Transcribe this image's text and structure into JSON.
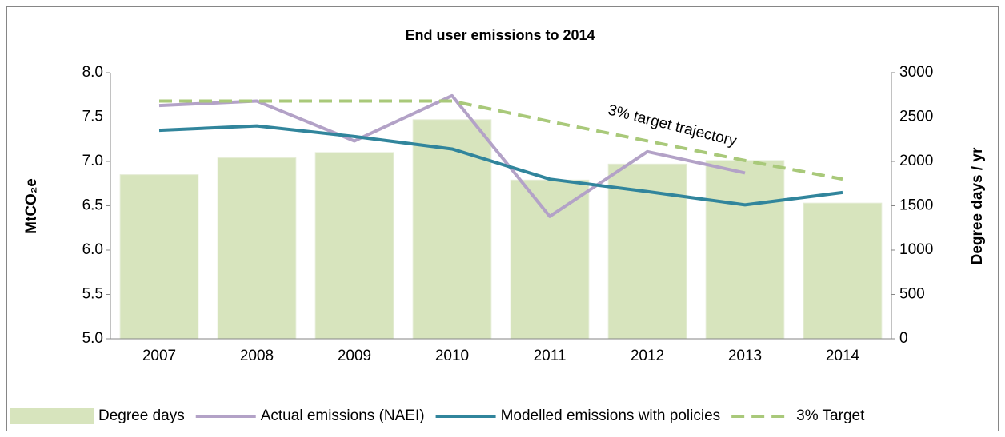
{
  "chart_data": {
    "type": "combo",
    "title": "End user emissions to 2014",
    "ylabel": "MtCO₂e",
    "y2label": "Degree days / yr",
    "annotation": "3% target trajectory",
    "categories": [
      "2007",
      "2008",
      "2009",
      "2010",
      "2011",
      "2012",
      "2013",
      "2014"
    ],
    "series": [
      {
        "name": "Degree days",
        "type": "bar",
        "axis": "y2",
        "color": "#d7e4bd",
        "values": [
          1850,
          2040,
          2100,
          2470,
          1790,
          1970,
          2010,
          1530
        ]
      },
      {
        "name": "Actual emissions (NAEI)",
        "type": "line",
        "color": "#b3a2c7",
        "values": [
          7.63,
          7.68,
          7.23,
          7.74,
          6.38,
          7.11,
          6.87,
          null
        ]
      },
      {
        "name": "Modelled emissions with policies",
        "type": "line",
        "color": "#31859c",
        "values": [
          7.35,
          7.4,
          7.28,
          7.14,
          6.8,
          6.66,
          6.51,
          6.65
        ]
      },
      {
        "name": "3% Target",
        "type": "line",
        "dashed": true,
        "color": "#a9c97a",
        "values": [
          7.68,
          7.68,
          7.68,
          7.68,
          7.45,
          7.23,
          7.01,
          6.8
        ]
      }
    ],
    "ylim": [
      5.0,
      8.0
    ],
    "yticks": [
      {
        "value": 5,
        "label": "5.0"
      },
      {
        "value": 5.5,
        "label": "5.5"
      },
      {
        "value": 6,
        "label": "6.0"
      },
      {
        "value": 6.5,
        "label": "6.5"
      },
      {
        "value": 7,
        "label": "7.0"
      },
      {
        "value": 7.5,
        "label": "7.5"
      },
      {
        "value": 8,
        "label": "8.0"
      }
    ],
    "y2lim": [
      0,
      3000
    ],
    "y2ticks": [
      0,
      500,
      1000,
      1500,
      2000,
      2500,
      3000
    ],
    "grid": false,
    "legend": "bottom"
  }
}
